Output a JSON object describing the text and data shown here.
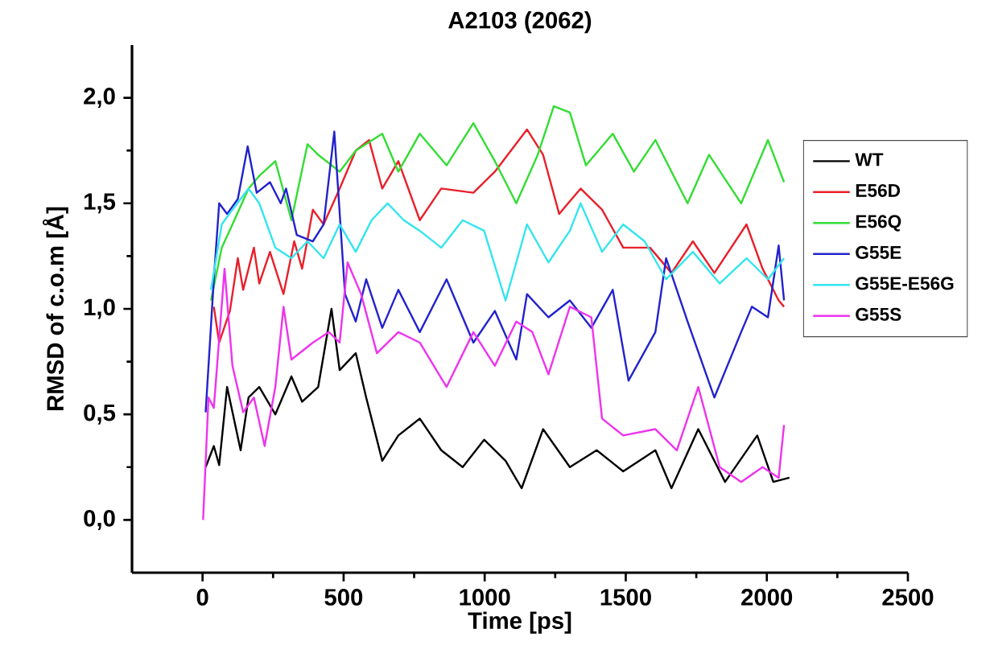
{
  "chart_data": {
    "type": "line",
    "title": "A2103 (2062)",
    "xlabel": "Time [ps]",
    "ylabel": "RMSD of c.o.m [Å]",
    "xlim": [
      -250,
      2500
    ],
    "ylim": [
      -0.25,
      2.25
    ],
    "xticks": [
      0,
      500,
      1000,
      1500,
      2000,
      2500
    ],
    "yticks": [
      {
        "value": 0,
        "label": "0,0"
      },
      {
        "value": 0.5,
        "label": "0,5"
      },
      {
        "value": 1,
        "label": "1,0"
      },
      {
        "value": 1.5,
        "label": "1,5"
      },
      {
        "value": 2,
        "label": "2,0"
      }
    ],
    "legend": "right",
    "series": [
      {
        "name": "WT",
        "color": "#000000",
        "x": [
          11,
          40,
          59,
          87,
          135,
          163,
          201,
          258,
          315,
          353,
          410,
          457,
          486,
          543,
          580,
          637,
          694,
          770,
          846,
          922,
          998,
          1074,
          1131,
          1207,
          1302,
          1397,
          1491,
          1605,
          1662,
          1757,
          1852,
          1966,
          2023,
          2080
        ],
        "values": [
          0.25,
          0.35,
          0.26,
          0.63,
          0.33,
          0.58,
          0.63,
          0.5,
          0.68,
          0.56,
          0.63,
          1.0,
          0.71,
          0.79,
          0.58,
          0.28,
          0.4,
          0.48,
          0.33,
          0.25,
          0.38,
          0.28,
          0.15,
          0.43,
          0.25,
          0.33,
          0.23,
          0.33,
          0.15,
          0.43,
          0.18,
          0.4,
          0.18,
          0.2
        ]
      },
      {
        "name": "E56D",
        "color": "#e8202a",
        "x": [
          40,
          59,
          97,
          125,
          144,
          182,
          201,
          239,
          287,
          325,
          353,
          391,
          429,
          486,
          543,
          590,
          637,
          694,
          770,
          846,
          960,
          1036,
          1150,
          1207,
          1264,
          1340,
          1416,
          1491,
          1586,
          1662,
          1738,
          1814,
          1928,
          1985,
          2042,
          2061
        ],
        "values": [
          1.01,
          0.84,
          0.99,
          1.24,
          1.09,
          1.29,
          1.12,
          1.27,
          1.07,
          1.32,
          1.19,
          1.47,
          1.4,
          1.57,
          1.75,
          1.8,
          1.57,
          1.7,
          1.42,
          1.57,
          1.55,
          1.65,
          1.85,
          1.73,
          1.45,
          1.57,
          1.47,
          1.29,
          1.29,
          1.17,
          1.32,
          1.17,
          1.4,
          1.19,
          1.04,
          1.01
        ]
      },
      {
        "name": "E56Q",
        "color": "#33dd33",
        "x": [
          30,
          68,
          106,
          163,
          201,
          258,
          315,
          372,
          410,
          486,
          543,
          637,
          694,
          770,
          865,
          960,
          1036,
          1112,
          1188,
          1245,
          1302,
          1359,
          1454,
          1529,
          1605,
          1719,
          1795,
          1909,
          2004,
          2061
        ],
        "values": [
          1.04,
          1.29,
          1.4,
          1.57,
          1.63,
          1.7,
          1.42,
          1.78,
          1.73,
          1.65,
          1.75,
          1.83,
          1.65,
          1.83,
          1.68,
          1.88,
          1.7,
          1.5,
          1.73,
          1.96,
          1.93,
          1.68,
          1.83,
          1.65,
          1.8,
          1.5,
          1.73,
          1.5,
          1.8,
          1.6
        ]
      },
      {
        "name": "G55E",
        "color": "#2222cc",
        "x": [
          11,
          40,
          59,
          87,
          125,
          160,
          192,
          239,
          277,
          296,
          334,
          391,
          429,
          467,
          505,
          543,
          580,
          637,
          694,
          770,
          865,
          960,
          1036,
          1112,
          1150,
          1226,
          1302,
          1378,
          1454,
          1510,
          1605,
          1643,
          1719,
          1814,
          1909,
          1947,
          2004,
          2042,
          2061
        ],
        "values": [
          0.51,
          1.14,
          1.5,
          1.45,
          1.52,
          1.77,
          1.55,
          1.6,
          1.5,
          1.57,
          1.35,
          1.32,
          1.4,
          1.84,
          1.07,
          0.94,
          1.14,
          0.91,
          1.09,
          0.89,
          1.14,
          0.84,
          0.99,
          0.76,
          1.07,
          0.96,
          1.04,
          0.91,
          1.09,
          0.66,
          0.89,
          1.24,
          0.94,
          0.58,
          0.89,
          1.01,
          0.96,
          1.3,
          1.04
        ]
      },
      {
        "name": "G55E-E56G",
        "color": "#33e5ee",
        "x": [
          30,
          68,
          106,
          163,
          201,
          258,
          315,
          372,
          429,
          486,
          543,
          599,
          656,
          713,
          770,
          846,
          922,
          998,
          1074,
          1150,
          1226,
          1302,
          1340,
          1416,
          1491,
          1567,
          1643,
          1738,
          1833,
          1928,
          2004,
          2061
        ],
        "values": [
          1.09,
          1.4,
          1.47,
          1.57,
          1.5,
          1.29,
          1.24,
          1.32,
          1.24,
          1.4,
          1.27,
          1.42,
          1.5,
          1.42,
          1.37,
          1.29,
          1.42,
          1.37,
          1.04,
          1.4,
          1.22,
          1.37,
          1.5,
          1.27,
          1.4,
          1.32,
          1.14,
          1.27,
          1.12,
          1.24,
          1.14,
          1.24
        ]
      },
      {
        "name": "G55S",
        "color": "#ee33ee",
        "x": [
          2,
          21,
          40,
          78,
          106,
          144,
          182,
          220,
          258,
          287,
          315,
          391,
          448,
          486,
          514,
          562,
          618,
          694,
          770,
          865,
          960,
          1036,
          1112,
          1169,
          1226,
          1302,
          1378,
          1416,
          1491,
          1605,
          1681,
          1757,
          1833,
          1909,
          1985,
          2042,
          2061
        ],
        "values": [
          0,
          0.58,
          0.53,
          1.19,
          0.73,
          0.51,
          0.58,
          0.35,
          0.63,
          1.01,
          0.76,
          0.84,
          0.89,
          0.84,
          1.22,
          1.07,
          0.79,
          0.89,
          0.84,
          0.63,
          0.89,
          0.73,
          0.94,
          0.89,
          0.69,
          1.01,
          0.96,
          0.48,
          0.4,
          0.43,
          0.33,
          0.63,
          0.25,
          0.18,
          0.25,
          0.2,
          0.45
        ]
      }
    ]
  }
}
